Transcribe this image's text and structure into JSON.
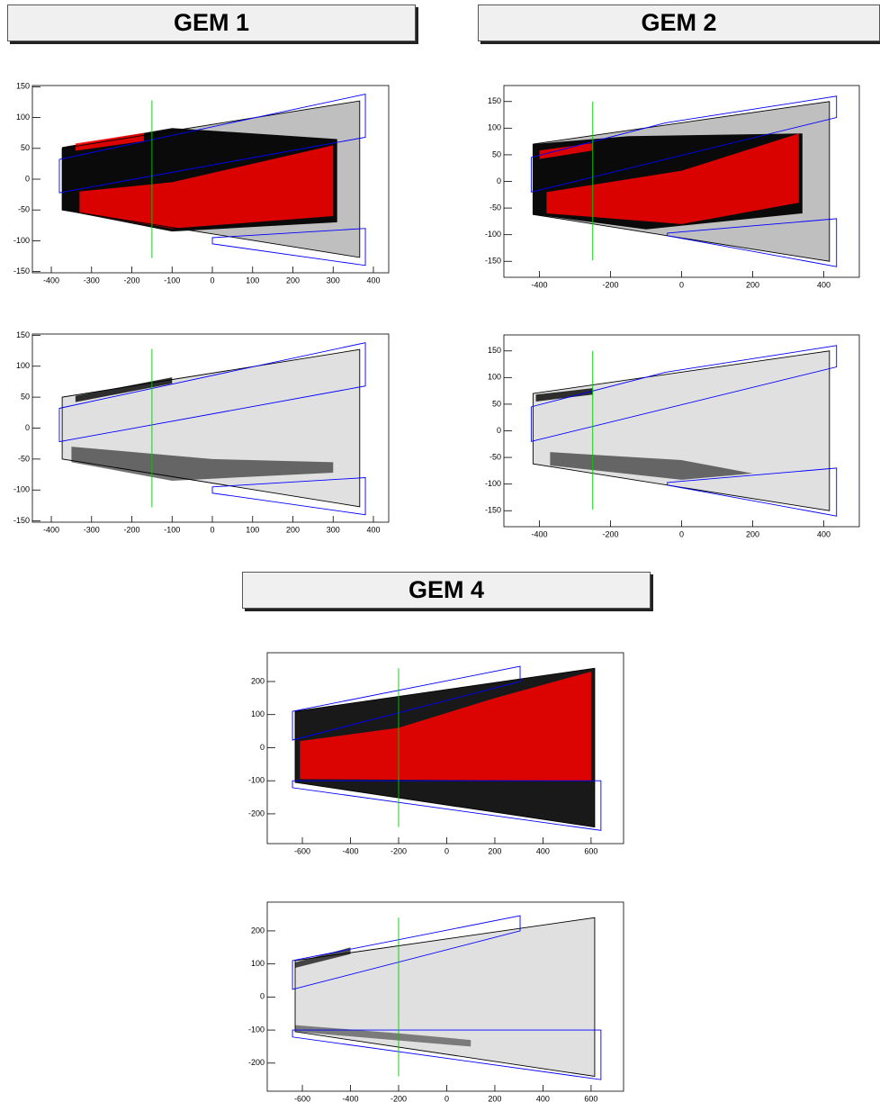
{
  "headers": [
    "GEM 1",
    "GEM 2",
    "GEM 4"
  ],
  "chart_data": [
    {
      "type": "scatter",
      "xlim": [
        -447,
        438
      ],
      "ylim": [
        -152,
        152
      ],
      "xticks": [
        -400,
        -300,
        -200,
        -100,
        0,
        100,
        200,
        300,
        400
      ],
      "yticks": [
        -150,
        -100,
        -50,
        0,
        50,
        100,
        150
      ],
      "regions": [
        {
          "color": "#000000",
          "opacity": 0.25,
          "x": [
            -373,
            366,
            366,
            -373
          ],
          "y": [
            50,
            127,
            -127,
            -50
          ]
        },
        {
          "color": "#000000",
          "opacity": 0.95,
          "x": [
            -373,
            -100,
            310,
            310,
            -100,
            -373
          ],
          "y": [
            52,
            83,
            65,
            -70,
            -85,
            -50
          ]
        },
        {
          "color": "#ff0000",
          "opacity": 0.85,
          "x": [
            -340,
            -170,
            -170,
            -340
          ],
          "y": [
            58,
            75,
            62,
            46
          ]
        },
        {
          "color": "#ff0000",
          "opacity": 0.85,
          "x": [
            -330,
            -100,
            300,
            300,
            -100,
            -330
          ],
          "y": [
            -20,
            -5,
            55,
            -60,
            -80,
            -55
          ]
        }
      ],
      "outlines": [
        {
          "color": "#000000",
          "x": [
            -373,
            366,
            366,
            -373
          ],
          "y": [
            50,
            127,
            -127,
            -50
          ]
        },
        {
          "color": "#0000ff",
          "x": [
            -380,
            380,
            380,
            -380
          ],
          "y": [
            32,
            138,
            68,
            -22
          ]
        },
        {
          "color": "#0000ff",
          "x": [
            0,
            380,
            380,
            0
          ],
          "y": [
            -95,
            -80,
            -140,
            -105
          ]
        },
        {
          "color": "#00cc00",
          "x": [
            -150,
            -150
          ],
          "y": [
            -128,
            128
          ]
        }
      ]
    },
    {
      "type": "scatter",
      "xlim": [
        -500,
        500
      ],
      "ylim": [
        -180,
        180
      ],
      "xticks": [
        -400,
        -200,
        0,
        200,
        400
      ],
      "yticks": [
        -150,
        -100,
        -50,
        0,
        50,
        100,
        150
      ],
      "regions": [
        {
          "color": "#000000",
          "opacity": 0.25,
          "x": [
            -418,
            416,
            416,
            -418
          ],
          "y": [
            70,
            150,
            -150,
            -62
          ]
        },
        {
          "color": "#000000",
          "opacity": 0.95,
          "x": [
            -418,
            -150,
            340,
            340,
            -100,
            -418
          ],
          "y": [
            70,
            85,
            90,
            -60,
            -90,
            -62
          ]
        },
        {
          "color": "#ff0000",
          "opacity": 0.85,
          "x": [
            -400,
            -250,
            -250,
            -400
          ],
          "y": [
            58,
            72,
            58,
            42
          ]
        },
        {
          "color": "#ff0000",
          "opacity": 0.85,
          "x": [
            -380,
            0,
            330,
            330,
            0,
            -380
          ],
          "y": [
            -20,
            20,
            90,
            -40,
            -80,
            -60
          ]
        }
      ],
      "outlines": [
        {
          "color": "#000000",
          "x": [
            -418,
            416,
            416,
            -418
          ],
          "y": [
            70,
            150,
            -150,
            -62
          ]
        },
        {
          "color": "#0000ff",
          "x": [
            -423,
            -45,
            436,
            436,
            -423
          ],
          "y": [
            45,
            110,
            160,
            120,
            -20
          ]
        },
        {
          "color": "#0000ff",
          "x": [
            -40,
            436,
            436,
            -40
          ],
          "y": [
            -97,
            -70,
            -160,
            -102
          ]
        },
        {
          "color": "#00cc00",
          "x": [
            -250,
            -250
          ],
          "y": [
            -148,
            150
          ]
        }
      ]
    },
    {
      "type": "scatter",
      "xlim": [
        -447,
        438
      ],
      "ylim": [
        -152,
        152
      ],
      "xticks": [
        -400,
        -300,
        -200,
        -100,
        0,
        100,
        200,
        300,
        400
      ],
      "yticks": [
        -150,
        -100,
        -50,
        0,
        50,
        100,
        150
      ],
      "regions": [
        {
          "color": "#000000",
          "opacity": 0.12,
          "x": [
            -373,
            366,
            366,
            -373
          ],
          "y": [
            50,
            127,
            -127,
            -50
          ]
        },
        {
          "color": "#000000",
          "opacity": 0.8,
          "x": [
            -340,
            -100,
            -100,
            -340
          ],
          "y": [
            52,
            82,
            72,
            42
          ]
        },
        {
          "color": "#000000",
          "opacity": 0.55,
          "x": [
            -350,
            0,
            300,
            300,
            -100,
            -350
          ],
          "y": [
            -30,
            -50,
            -55,
            -72,
            -85,
            -55
          ]
        }
      ],
      "outlines": [
        {
          "color": "#000000",
          "x": [
            -373,
            366,
            366,
            -373
          ],
          "y": [
            50,
            127,
            -127,
            -50
          ]
        },
        {
          "color": "#0000ff",
          "x": [
            -380,
            380,
            380,
            -380
          ],
          "y": [
            32,
            138,
            68,
            -22
          ]
        },
        {
          "color": "#0000ff",
          "x": [
            0,
            380,
            380,
            0
          ],
          "y": [
            -95,
            -80,
            -140,
            -105
          ]
        },
        {
          "color": "#00cc00",
          "x": [
            -150,
            -150
          ],
          "y": [
            -128,
            128
          ]
        }
      ]
    },
    {
      "type": "scatter",
      "xlim": [
        -500,
        500
      ],
      "ylim": [
        -180,
        180
      ],
      "xticks": [
        -400,
        -200,
        0,
        200,
        400
      ],
      "yticks": [
        -150,
        -100,
        -50,
        0,
        50,
        100,
        150
      ],
      "regions": [
        {
          "color": "#000000",
          "opacity": 0.12,
          "x": [
            -418,
            416,
            416,
            -418
          ],
          "y": [
            70,
            150,
            -150,
            -62
          ]
        },
        {
          "color": "#000000",
          "opacity": 0.8,
          "x": [
            -410,
            -250,
            -250,
            -410
          ],
          "y": [
            68,
            80,
            68,
            55
          ]
        },
        {
          "color": "#000000",
          "opacity": 0.55,
          "x": [
            -370,
            0,
            200,
            0,
            -370
          ],
          "y": [
            -40,
            -55,
            -80,
            -92,
            -65
          ]
        }
      ],
      "outlines": [
        {
          "color": "#000000",
          "x": [
            -418,
            416,
            416,
            -418
          ],
          "y": [
            70,
            150,
            -150,
            -62
          ]
        },
        {
          "color": "#0000ff",
          "x": [
            -423,
            -45,
            436,
            436,
            -423
          ],
          "y": [
            45,
            110,
            160,
            120,
            -20
          ]
        },
        {
          "color": "#0000ff",
          "x": [
            -40,
            436,
            436,
            -40
          ],
          "y": [
            -97,
            -70,
            -160,
            -102
          ]
        },
        {
          "color": "#00cc00",
          "x": [
            -250,
            -250
          ],
          "y": [
            -148,
            150
          ]
        }
      ]
    },
    {
      "type": "scatter",
      "xlim": [
        -746,
        735
      ],
      "ylim": [
        -290,
        287
      ],
      "xticks": [
        -600,
        -400,
        -200,
        0,
        200,
        400,
        600
      ],
      "yticks": [
        -200,
        -100,
        0,
        100,
        200
      ],
      "regions": [
        {
          "color": "#000000",
          "opacity": 0.9,
          "x": [
            -630,
            615,
            615,
            -630
          ],
          "y": [
            110,
            240,
            -240,
            -105
          ]
        },
        {
          "color": "#ff0000",
          "opacity": 0.85,
          "x": [
            -610,
            -200,
            200,
            600,
            600,
            -610
          ],
          "y": [
            20,
            60,
            150,
            230,
            -100,
            -95
          ]
        }
      ],
      "outlines": [
        {
          "color": "#000000",
          "x": [
            -630,
            615,
            615,
            -630
          ],
          "y": [
            110,
            240,
            -240,
            -105
          ]
        },
        {
          "color": "#0000ff",
          "x": [
            -641,
            305,
            305,
            -641
          ],
          "y": [
            110,
            246,
            200,
            23
          ]
        },
        {
          "color": "#0000ff",
          "x": [
            -641,
            641,
            641,
            -641
          ],
          "y": [
            -100,
            -100,
            -250,
            -121
          ]
        },
        {
          "color": "#00cc00",
          "x": [
            -200,
            -200
          ],
          "y": [
            -240,
            240
          ]
        }
      ]
    },
    {
      "type": "scatter",
      "xlim": [
        -746,
        735
      ],
      "ylim": [
        -285,
        287
      ],
      "xticks": [
        -600,
        -400,
        -200,
        0,
        200,
        400,
        600
      ],
      "yticks": [
        -200,
        -100,
        0,
        100,
        200
      ],
      "regions": [
        {
          "color": "#000000",
          "opacity": 0.12,
          "x": [
            -630,
            615,
            615,
            -630
          ],
          "y": [
            110,
            240,
            -240,
            -105
          ]
        },
        {
          "color": "#000000",
          "opacity": 0.7,
          "x": [
            -630,
            -400,
            -400,
            -630
          ],
          "y": [
            105,
            150,
            130,
            88
          ]
        },
        {
          "color": "#000000",
          "opacity": 0.45,
          "x": [
            -630,
            -200,
            100,
            100,
            -630
          ],
          "y": [
            -85,
            -110,
            -130,
            -150,
            -105
          ]
        }
      ],
      "outlines": [
        {
          "color": "#000000",
          "x": [
            -630,
            615,
            615,
            -630
          ],
          "y": [
            110,
            240,
            -240,
            -105
          ]
        },
        {
          "color": "#0000ff",
          "x": [
            -641,
            305,
            305,
            -641
          ],
          "y": [
            110,
            246,
            200,
            23
          ]
        },
        {
          "color": "#0000ff",
          "x": [
            -641,
            641,
            641,
            -641
          ],
          "y": [
            -100,
            -100,
            -250,
            -121
          ]
        },
        {
          "color": "#00cc00",
          "x": [
            -200,
            -200
          ],
          "y": [
            -240,
            240
          ]
        }
      ]
    }
  ]
}
